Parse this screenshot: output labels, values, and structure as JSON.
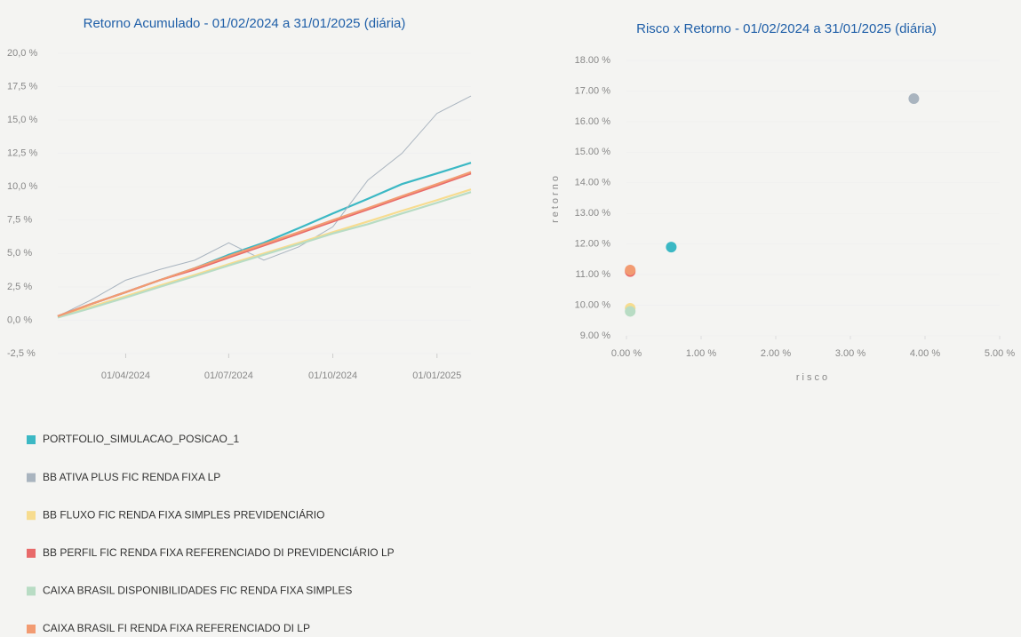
{
  "chart_data": [
    {
      "type": "line",
      "title": "Retorno Acumulado - 01/02/2024 a 31/01/2025 (diária)",
      "x": [
        "01/02/2024",
        "01/03/2024",
        "01/04/2024",
        "01/05/2024",
        "01/06/2024",
        "01/07/2024",
        "01/08/2024",
        "01/09/2024",
        "01/10/2024",
        "01/11/2024",
        "01/12/2024",
        "01/01/2025",
        "31/01/2025"
      ],
      "xlim": [
        "01/02/2024",
        "31/01/2025"
      ],
      "xticks": [
        "01/04/2024",
        "01/07/2024",
        "01/10/2024",
        "01/01/2025"
      ],
      "ylim": [
        -2.5,
        20
      ],
      "yticks": [
        {
          "value": -2.5,
          "label": "-2,5 %"
        },
        {
          "value": 0,
          "label": "0,0 %"
        },
        {
          "value": 2.5,
          "label": "2,5 %"
        },
        {
          "value": 5,
          "label": "5,0 %"
        },
        {
          "value": 7.5,
          "label": "7,5 %"
        },
        {
          "value": 10,
          "label": "10,0 %"
        },
        {
          "value": 12.5,
          "label": "12,5 %"
        },
        {
          "value": 15,
          "label": "15,0 %"
        },
        {
          "value": 17.5,
          "label": "17,5 %"
        },
        {
          "value": 20,
          "label": "20,0 %"
        }
      ],
      "series": [
        {
          "name": "PORTFOLIO_SIMULACAO_POSICAO_1",
          "color": "#3bb8c4",
          "values": [
            0.3,
            1.2,
            2.1,
            3.0,
            3.9,
            4.9,
            5.8,
            6.9,
            8.0,
            9.1,
            10.2,
            11.0,
            11.8
          ]
        },
        {
          "name": "BB ATIVA PLUS FIC RENDA FIXA LP",
          "color": "#a9b4bf",
          "values": [
            0.3,
            1.5,
            3.0,
            3.8,
            4.5,
            5.8,
            4.5,
            5.5,
            7.0,
            10.5,
            12.5,
            15.5,
            16.8
          ]
        },
        {
          "name": "BB FLUXO FIC RENDA FIXA SIMPLES PREVIDENCIÁRIO",
          "color": "#f7dc8f",
          "values": [
            0.3,
            1.0,
            1.8,
            2.6,
            3.4,
            4.2,
            5.0,
            5.8,
            6.6,
            7.4,
            8.2,
            9.0,
            9.8
          ]
        },
        {
          "name": "BB PERFIL FIC RENDA FIXA REFERENCIADO DI PREVIDENCIÁRIO LP",
          "color": "#e86a6a",
          "values": [
            0.3,
            1.2,
            2.1,
            3.0,
            3.8,
            4.7,
            5.6,
            6.5,
            7.4,
            8.3,
            9.2,
            10.1,
            11.0
          ]
        },
        {
          "name": "CAIXA BRASIL DISPONIBILIDADES FIC RENDA FIXA SIMPLES",
          "color": "#b8dcc4",
          "values": [
            0.2,
            0.9,
            1.7,
            2.5,
            3.3,
            4.1,
            4.9,
            5.7,
            6.5,
            7.2,
            8.0,
            8.8,
            9.6
          ]
        },
        {
          "name": "CAIXA BRASIL FI RENDA FIXA REFERENCIADO DI LP",
          "color": "#f29b72",
          "values": [
            0.3,
            1.2,
            2.1,
            3.0,
            3.9,
            4.8,
            5.7,
            6.6,
            7.5,
            8.4,
            9.3,
            10.2,
            11.1
          ]
        }
      ]
    },
    {
      "type": "scatter",
      "title": "Risco x Retorno - 01/02/2024 a 31/01/2025 (diária)",
      "x_label": "risco",
      "y_label": "retorno",
      "xlim": [
        0,
        5
      ],
      "ylim": [
        9,
        18
      ],
      "xticks": [
        {
          "value": 0,
          "label": "0.00 %"
        },
        {
          "value": 1,
          "label": "1.00 %"
        },
        {
          "value": 2,
          "label": "2.00 %"
        },
        {
          "value": 3,
          "label": "3.00 %"
        },
        {
          "value": 4,
          "label": "4.00 %"
        },
        {
          "value": 5,
          "label": "5.00 %"
        }
      ],
      "yticks": [
        {
          "value": 9,
          "label": "9.00 %"
        },
        {
          "value": 10,
          "label": "10.00 %"
        },
        {
          "value": 11,
          "label": "11.00 %"
        },
        {
          "value": 12,
          "label": "12.00 %"
        },
        {
          "value": 13,
          "label": "13.00 %"
        },
        {
          "value": 14,
          "label": "14.00 %"
        },
        {
          "value": 15,
          "label": "15.00 %"
        },
        {
          "value": 16,
          "label": "16.00 %"
        },
        {
          "value": 17,
          "label": "17.00 %"
        },
        {
          "value": 18,
          "label": "18.00 %"
        }
      ],
      "series": [
        {
          "color": "#3bb8c4",
          "x": [
            0.6
          ],
          "values": [
            11.9
          ]
        },
        {
          "color": "#a9b4bf",
          "x": [
            3.85
          ],
          "values": [
            16.75
          ]
        },
        {
          "color": "#f7dc8f",
          "x": [
            0.05
          ],
          "values": [
            9.9
          ]
        },
        {
          "color": "#e86a6a",
          "x": [
            0.05
          ],
          "values": [
            11.1
          ]
        },
        {
          "color": "#b8dcc4",
          "x": [
            0.05
          ],
          "values": [
            9.8
          ]
        },
        {
          "color": "#f29b72",
          "x": [
            0.05
          ],
          "values": [
            11.15
          ]
        }
      ]
    }
  ]
}
